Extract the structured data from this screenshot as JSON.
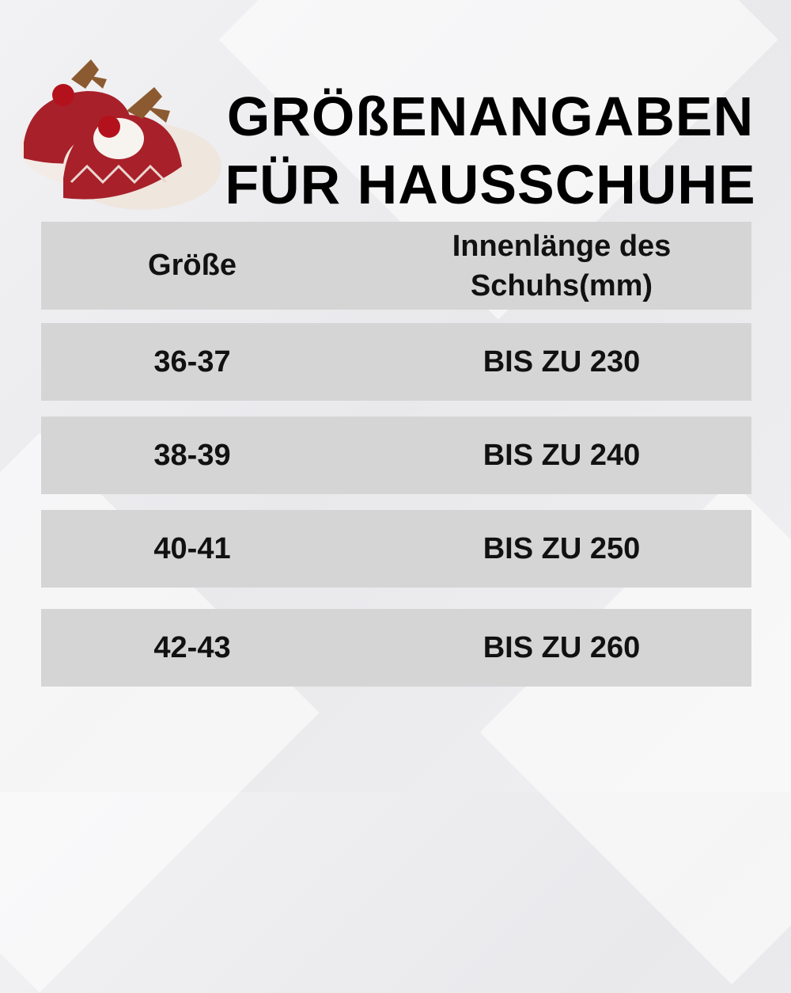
{
  "title": {
    "line1": "GRÖßENANGABEN",
    "line2": "FÜR HAUSSCHUHE"
  },
  "table": {
    "headers": {
      "size": "Größe",
      "length_line1": "Innenlänge des",
      "length_line2": "Schuhs(mm)"
    },
    "rows": [
      {
        "size": "36-37",
        "length": "BIS ZU 230"
      },
      {
        "size": "38-39",
        "length": "BIS ZU 240"
      },
      {
        "size": "40-41",
        "length": "BIS ZU 250"
      },
      {
        "size": "42-43",
        "length": "BIS ZU 260"
      }
    ]
  },
  "colors": {
    "row_bg": "#d5d5d5",
    "slipper_red": "#a8202a"
  },
  "image": {
    "product": "reindeer-slippers"
  }
}
